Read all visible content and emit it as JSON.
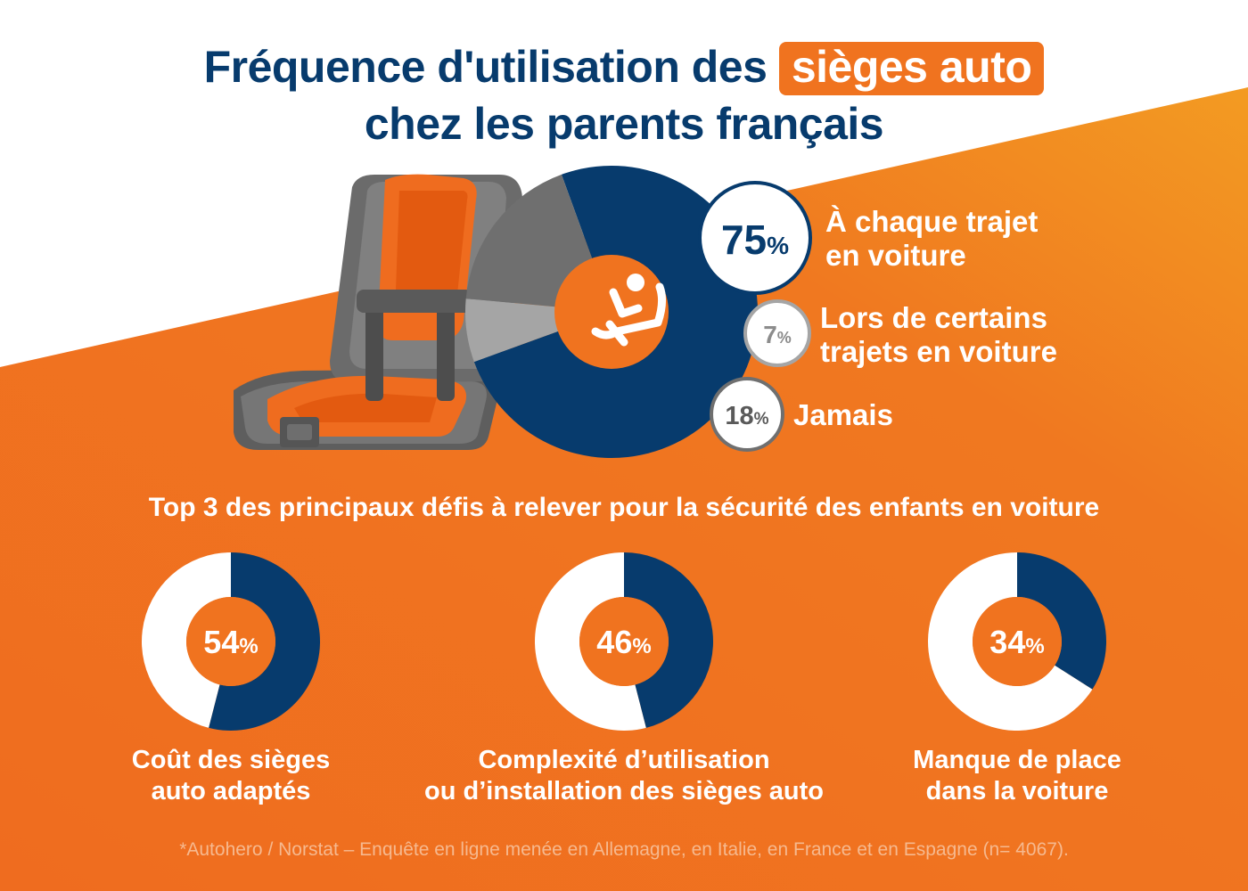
{
  "title": {
    "before": "Fréquence d'utilisation des ",
    "highlight": "sièges auto",
    "line2": "chez les parents français"
  },
  "chart_data": [
    {
      "type": "pie",
      "title": "",
      "series": [
        {
          "label_line1": "À chaque trajet",
          "label_line2": "en voiture",
          "value": 75,
          "value_text": "75",
          "color": "#073b6d"
        },
        {
          "label_line1": "Lors de certains",
          "label_line2": "trajets en voiture",
          "value": 7,
          "value_text": "7",
          "color": "#a5a5a5"
        },
        {
          "label_line1": "Jamais",
          "label_line2": "",
          "value": 18,
          "value_text": "18",
          "color": "#6f6f6f"
        }
      ],
      "percent_sign": "%",
      "center_icon": "seated-person-icon"
    },
    {
      "type": "pie",
      "subtitle": "Top 3 des principaux défis à relever pour la sécurité des enfants en voiture",
      "items": [
        {
          "value": 54,
          "value_text": "54",
          "label_line1": "Coût des sièges",
          "label_line2": "auto adaptés"
        },
        {
          "value": 46,
          "value_text": "46",
          "label_line1": "Complexité d’utilisation",
          "label_line2": "ou d’installation des sièges auto"
        },
        {
          "value": 34,
          "value_text": "34",
          "label_line1": "Manque de place",
          "label_line2": "dans la voiture"
        }
      ],
      "percent_sign": "%",
      "colors": {
        "filled": "#073b6d",
        "remainder": "#ffffff",
        "center": "#f0731f"
      }
    }
  ],
  "illustration": "car-seat-icon",
  "colors": {
    "navy": "#073b6d",
    "orange": "#f0731f",
    "background": "#ffffff"
  },
  "footnote": "*Autohero / Norstat – Enquête en ligne menée en Allemagne, en Italie, en France et en Espagne (n= 4067)."
}
